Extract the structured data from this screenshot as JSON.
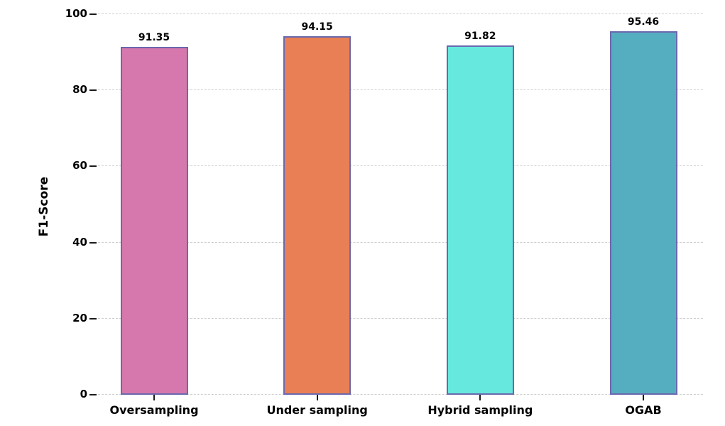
{
  "chart_data": {
    "type": "bar",
    "title": "",
    "xlabel": "",
    "ylabel": "F1-Score",
    "categories": [
      "Oversampling",
      "Under sampling",
      "Hybrid sampling",
      "OGAB"
    ],
    "values": [
      91.35,
      94.15,
      91.82,
      95.46
    ],
    "value_labels": [
      "91.35",
      "94.15",
      "91.82",
      "95.46"
    ],
    "bar_colors": [
      "#d678ad",
      "#e87f55",
      "#66e8de",
      "#55aec0"
    ],
    "bar_edge_color": "#6a68ae",
    "yticks": [
      0,
      20,
      40,
      60,
      80,
      100
    ],
    "ylim": [
      0,
      100
    ],
    "grid": "horizontal-dashed",
    "grid_color": "#cfcfcf",
    "legend": "none"
  }
}
